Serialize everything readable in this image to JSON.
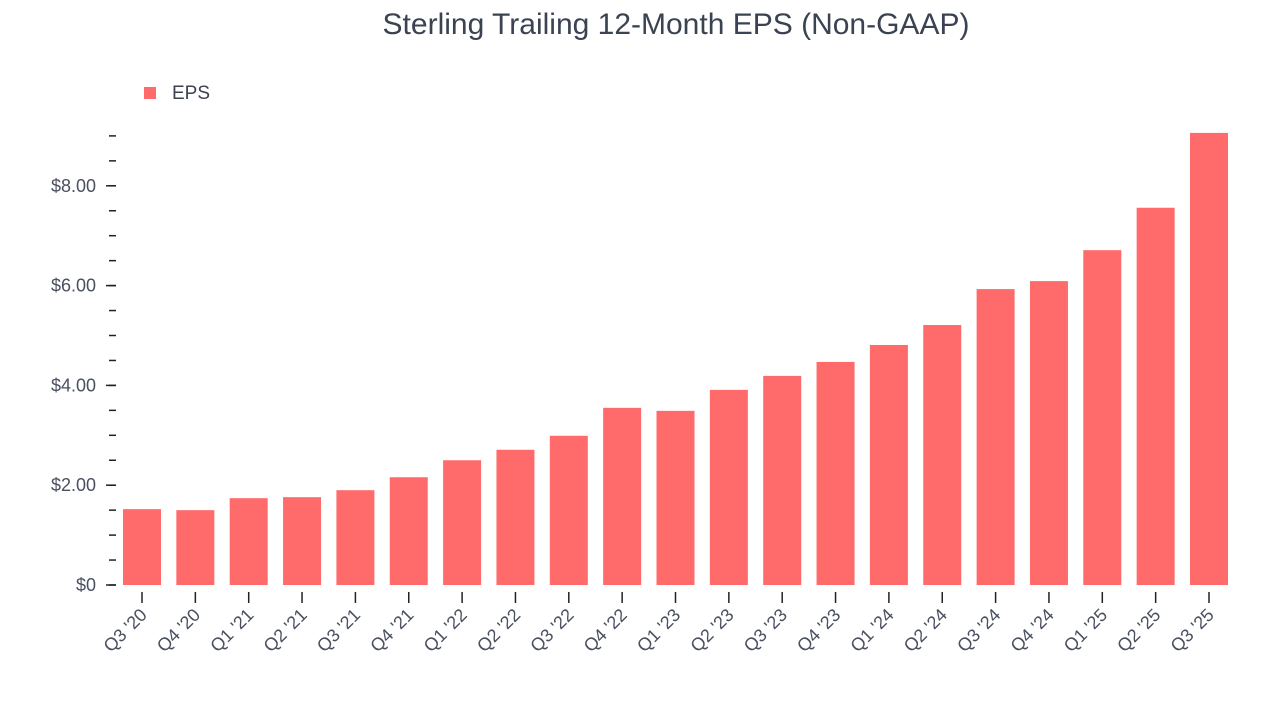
{
  "chart_data": {
    "type": "bar",
    "title": "Sterling Trailing 12-Month EPS (Non-GAAP)",
    "xlabel": "",
    "ylabel": "",
    "ylim": [
      0,
      9.1
    ],
    "legend": {
      "position": "top-left",
      "entries": [
        "EPS"
      ]
    },
    "bar_color": "#ff6b6b",
    "categories": [
      "Q3 '20",
      "Q4 '20",
      "Q1 '21",
      "Q2 '21",
      "Q3 '21",
      "Q4 '21",
      "Q1 '22",
      "Q2 '22",
      "Q3 '22",
      "Q4 '22",
      "Q1 '23",
      "Q2 '23",
      "Q3 '23",
      "Q4 '23",
      "Q1 '24",
      "Q2 '24",
      "Q3 '24",
      "Q4 '24",
      "Q1 '25",
      "Q2 '25",
      "Q3 '25"
    ],
    "series": [
      {
        "name": "EPS",
        "values": [
          1.52,
          1.5,
          1.74,
          1.76,
          1.9,
          2.16,
          2.5,
          2.71,
          2.99,
          3.55,
          3.49,
          3.91,
          4.19,
          4.47,
          4.81,
          5.21,
          5.93,
          6.09,
          6.71,
          7.56,
          9.06
        ]
      }
    ],
    "y_ticks": [
      {
        "value": 0,
        "label": "$0"
      },
      {
        "value": 2,
        "label": "$2.00"
      },
      {
        "value": 4,
        "label": "$4.00"
      },
      {
        "value": 6,
        "label": "$6.00"
      },
      {
        "value": 8,
        "label": "$8.00"
      }
    ],
    "grid": false
  }
}
